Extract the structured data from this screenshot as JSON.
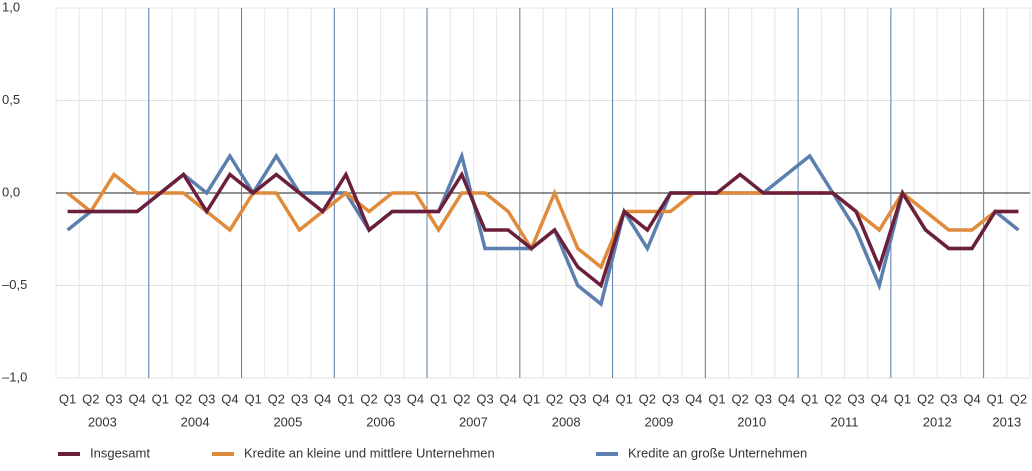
{
  "chart_data": {
    "type": "line",
    "categories": [
      "Q1",
      "Q2",
      "Q3",
      "Q4",
      "Q1",
      "Q2",
      "Q3",
      "Q4",
      "Q1",
      "Q2",
      "Q3",
      "Q4",
      "Q1",
      "Q2",
      "Q3",
      "Q4",
      "Q1",
      "Q2",
      "Q3",
      "Q4",
      "Q1",
      "Q2",
      "Q3",
      "Q4",
      "Q1",
      "Q2",
      "Q3",
      "Q4",
      "Q1",
      "Q2",
      "Q3",
      "Q4",
      "Q1",
      "Q2",
      "Q3",
      "Q4",
      "Q1",
      "Q2",
      "Q3",
      "Q4",
      "Q1",
      "Q2"
    ],
    "years": [
      "2003",
      "2004",
      "2005",
      "2006",
      "2007",
      "2008",
      "2009",
      "2010",
      "2011",
      "2012",
      "2013"
    ],
    "ylim": [
      -1,
      1
    ],
    "yticks": [
      {
        "value": -1,
        "label": "–1,0"
      },
      {
        "value": -0.5,
        "label": "–0,5"
      },
      {
        "value": 0,
        "label": "0,0"
      },
      {
        "value": 0.5,
        "label": "0,5"
      },
      {
        "value": 1,
        "label": "1,0"
      }
    ],
    "grid": true,
    "series": [
      {
        "name": "Insgesamt",
        "color": "#6b1f3a",
        "values": [
          -0.1,
          -0.1,
          -0.1,
          -0.1,
          0.0,
          0.1,
          -0.1,
          0.1,
          0.0,
          0.1,
          0.0,
          -0.1,
          0.1,
          -0.2,
          -0.1,
          -0.1,
          -0.1,
          0.1,
          -0.2,
          -0.2,
          -0.3,
          -0.2,
          -0.4,
          -0.5,
          -0.1,
          -0.2,
          0.0,
          0.0,
          0.0,
          0.1,
          0.0,
          0.0,
          0.0,
          0.0,
          -0.1,
          -0.4,
          0.0,
          -0.2,
          -0.3,
          -0.3,
          -0.1,
          -0.1
        ]
      },
      {
        "name": "Kredite an kleine und mittlere Unternehmen",
        "color": "#e08a3c",
        "values": [
          0.0,
          -0.1,
          0.1,
          0.0,
          0.0,
          0.0,
          -0.1,
          -0.2,
          0.0,
          0.0,
          -0.2,
          -0.1,
          0.0,
          -0.1,
          0.0,
          0.0,
          -0.2,
          0.0,
          0.0,
          -0.1,
          -0.3,
          0.0,
          -0.3,
          -0.4,
          -0.1,
          -0.1,
          -0.1,
          0.0,
          0.0,
          0.0,
          0.0,
          0.0,
          0.0,
          0.0,
          -0.1,
          -0.2,
          0.0,
          -0.1,
          -0.2,
          -0.2,
          -0.1,
          -0.1
        ]
      },
      {
        "name": "Kredite an große Unternehmen",
        "color": "#5b7fae",
        "values": [
          -0.2,
          -0.1,
          -0.1,
          -0.1,
          0.0,
          0.1,
          0.0,
          0.2,
          0.0,
          0.2,
          0.0,
          0.0,
          0.0,
          -0.2,
          -0.1,
          -0.1,
          -0.1,
          0.2,
          -0.3,
          -0.3,
          -0.3,
          -0.2,
          -0.5,
          -0.6,
          -0.1,
          -0.3,
          0.0,
          0.0,
          0.0,
          0.0,
          0.0,
          0.1,
          0.2,
          0.0,
          -0.2,
          -0.5,
          0.0,
          -0.2,
          -0.3,
          -0.3,
          -0.1,
          -0.2
        ]
      }
    ]
  }
}
